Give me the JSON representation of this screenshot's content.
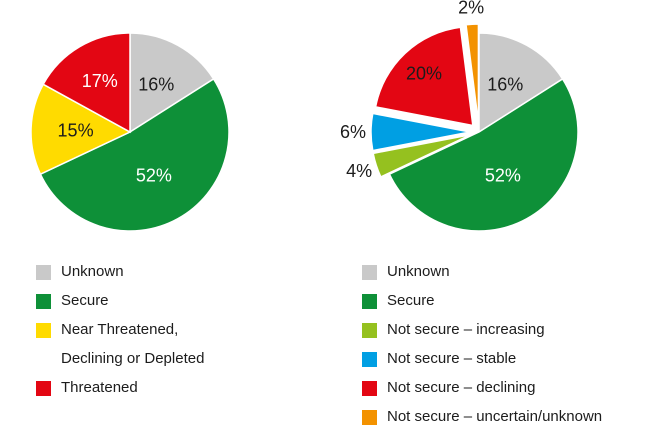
{
  "chart_data": [
    {
      "type": "pie",
      "slices": [
        {
          "label": "Unknown",
          "value": 16,
          "value_label": "16%",
          "color": "#c9c9c9",
          "text_color": "#1c1c1c"
        },
        {
          "label": "Secure",
          "value": 52,
          "value_label": "52%",
          "color": "#0e9038",
          "text_color": "#ffffff"
        },
        {
          "label": "Near Threatened,\nDeclining or Depleted",
          "value": 15,
          "value_label": "15%",
          "color": "#ffdb00",
          "text_color": "#1c1c1c"
        },
        {
          "label": "Threatened",
          "value": 17,
          "value_label": "17%",
          "color": "#e30613",
          "text_color": "#ffffff"
        }
      ],
      "start": "12 o'clock",
      "direction": "clockwise",
      "legend_position": "bottom"
    },
    {
      "type": "pie",
      "slices": [
        {
          "label": "Unknown",
          "value": 16,
          "value_label": "16%",
          "color": "#c9c9c9",
          "text_color": "#1c1c1c",
          "exploded": false
        },
        {
          "label": "Secure",
          "value": 52,
          "value_label": "52%",
          "color": "#0e9038",
          "text_color": "#ffffff",
          "exploded": false
        },
        {
          "label": "Not secure – increasing",
          "value": 4,
          "value_label": "4%",
          "color": "#95c11f",
          "text_color": "#1c1c1c",
          "exploded": true
        },
        {
          "label": "Not secure – stable",
          "value": 6,
          "value_label": "6%",
          "color": "#009fe3",
          "text_color": "#1c1c1c",
          "exploded": true
        },
        {
          "label": "Not secure – declining",
          "value": 20,
          "value_label": "20%",
          "color": "#e30613",
          "text_color": "#1c1c1c",
          "exploded": true
        },
        {
          "label": "Not secure – uncertain/unknown",
          "value": 2,
          "value_label": "2%",
          "color": "#f39200",
          "text_color": "#1c1c1c",
          "exploded": true
        }
      ],
      "start": "12 o'clock",
      "direction": "clockwise",
      "legend_position": "bottom"
    }
  ]
}
